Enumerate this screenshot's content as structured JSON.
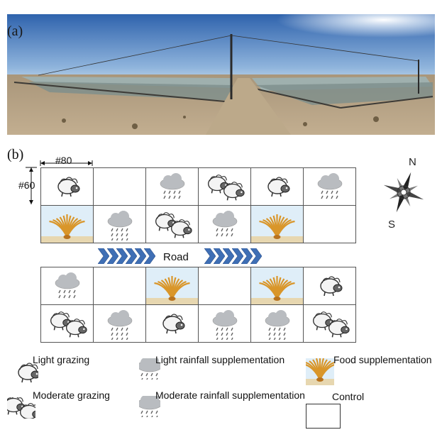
{
  "panel_a_label": "(a)",
  "panel_b_label": "(b)",
  "dimensions": {
    "width": "#80",
    "height": "#60"
  },
  "road_label": "Road",
  "compass": {
    "north": "N",
    "south": "S"
  },
  "plots": {
    "top_rows": [
      [
        "light-grazing",
        "control",
        "light-rainfall",
        "moderate-grazing",
        "light-grazing",
        "light-rainfall"
      ],
      [
        "food",
        "moderate-rainfall",
        "moderate-grazing",
        "light-rainfall",
        "food",
        "control"
      ]
    ],
    "bottom_rows": [
      [
        "light-rainfall",
        "control",
        "food",
        "control",
        "food",
        "light-grazing"
      ],
      [
        "moderate-grazing",
        "moderate-rainfall",
        "light-grazing",
        "moderate-rainfall",
        "moderate-rainfall",
        "moderate-grazing"
      ]
    ]
  },
  "legend": {
    "light_grazing": "Light grazing",
    "moderate_grazing": "Moderate grazing",
    "light_rainfall": "Light rainfall supplementation",
    "moderate_rainfall": "Moderate rainfall supplementation",
    "food": "Food supplementation",
    "control": "Control"
  },
  "colors": {
    "sky_top": "#3a6fb5",
    "sky_bottom": "#a9c8e6",
    "ground": "#b39f80",
    "road_arrow": "#3f6fb5",
    "cloud": "#b9bcc0",
    "wheat": "#d9962a"
  }
}
